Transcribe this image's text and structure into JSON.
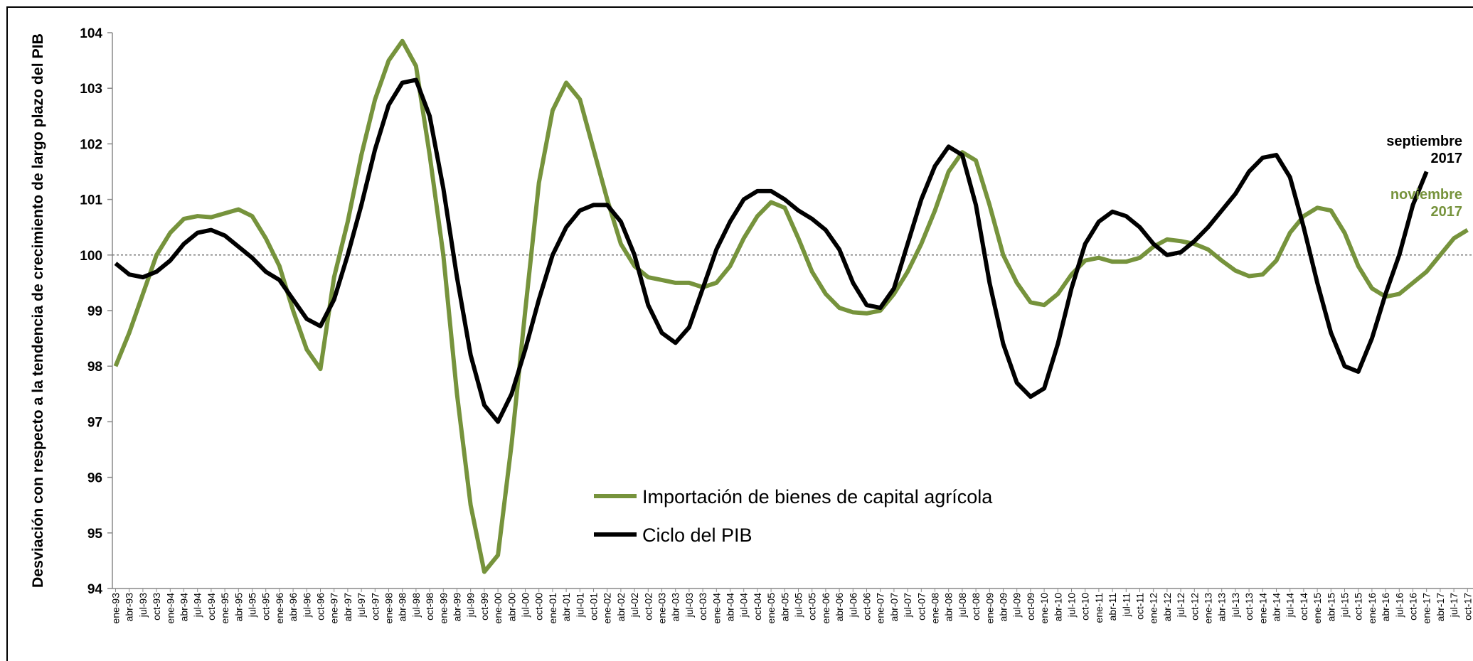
{
  "chart_data": {
    "type": "line",
    "ylabel": "Desviación con respecto a la tendencia de crecimiento de largo plazo del PIB",
    "categories": [
      "ene-93",
      "abr-93",
      "jul-93",
      "oct-93",
      "ene-94",
      "abr-94",
      "jul-94",
      "oct-94",
      "ene-95",
      "abr-95",
      "jul-95",
      "oct-95",
      "ene-96",
      "abr-96",
      "jul-96",
      "oct-96",
      "ene-97",
      "abr-97",
      "jul-97",
      "oct-97",
      "ene-98",
      "abr-98",
      "jul-98",
      "oct-98",
      "ene-99",
      "abr-99",
      "jul-99",
      "oct-99",
      "ene-00",
      "abr-00",
      "jul-00",
      "oct-00",
      "ene-01",
      "abr-01",
      "jul-01",
      "oct-01",
      "ene-02",
      "abr-02",
      "jul-02",
      "oct-02",
      "ene-03",
      "abr-03",
      "jul-03",
      "oct-03",
      "ene-04",
      "abr-04",
      "jul-04",
      "oct-04",
      "ene-05",
      "abr-05",
      "jul-05",
      "oct-05",
      "ene-06",
      "abr-06",
      "jul-06",
      "oct-06",
      "ene-07",
      "abr-07",
      "jul-07",
      "oct-07",
      "ene-08",
      "abr-08",
      "jul-08",
      "oct-08",
      "ene-09",
      "abr-09",
      "jul-09",
      "oct-09",
      "ene-10",
      "abr-10",
      "jul-10",
      "oct-10",
      "ene-11",
      "abr-11",
      "jul-11",
      "oct-11",
      "ene-12",
      "abr-12",
      "jul-12",
      "oct-12",
      "ene-13",
      "abr-13",
      "jul-13",
      "oct-13",
      "ene-14",
      "abr-14",
      "jul-14",
      "oct-14",
      "ene-15",
      "abr-15",
      "jul-15",
      "oct-15",
      "ene-16",
      "abr-16",
      "jul-16",
      "oct-16",
      "ene-17",
      "abr-17",
      "jul-17",
      "oct-17"
    ],
    "series": [
      {
        "name": "Importación de bienes de capital agrícola",
        "color": "#76933c",
        "values": [
          98.0,
          98.6,
          99.3,
          100.0,
          100.4,
          100.65,
          100.7,
          100.68,
          100.75,
          100.82,
          100.7,
          100.3,
          99.8,
          99.0,
          98.3,
          97.95,
          99.6,
          100.6,
          101.8,
          102.8,
          103.5,
          103.85,
          103.4,
          101.8,
          100.0,
          97.5,
          95.5,
          94.3,
          94.6,
          96.6,
          99.0,
          101.3,
          102.6,
          103.1,
          102.8,
          101.9,
          101.0,
          100.2,
          99.8,
          99.6,
          99.55,
          99.5,
          99.5,
          99.42,
          99.5,
          99.8,
          100.3,
          100.7,
          100.95,
          100.85,
          100.3,
          99.7,
          99.3,
          99.05,
          98.97,
          98.95,
          99.0,
          99.3,
          99.7,
          100.2,
          100.8,
          101.5,
          101.85,
          101.7,
          100.9,
          100.0,
          99.5,
          99.15,
          99.1,
          99.3,
          99.65,
          99.9,
          99.95,
          99.88,
          99.88,
          99.95,
          100.15,
          100.28,
          100.25,
          100.2,
          100.1,
          99.9,
          99.72,
          99.62,
          99.65,
          99.9,
          100.4,
          100.7,
          100.85,
          100.8,
          100.4,
          99.8,
          99.4,
          99.25,
          99.3,
          99.5,
          99.7,
          100.0,
          100.3,
          100.45
        ]
      },
      {
        "name": "Ciclo del PIB",
        "color": "#000000",
        "values": [
          99.85,
          99.65,
          99.6,
          99.7,
          99.9,
          100.2,
          100.4,
          100.45,
          100.35,
          100.15,
          99.95,
          99.7,
          99.55,
          99.2,
          98.85,
          98.72,
          99.2,
          100.0,
          100.9,
          101.9,
          102.7,
          103.1,
          103.15,
          102.5,
          101.2,
          99.6,
          98.2,
          97.3,
          97.0,
          97.5,
          98.3,
          99.2,
          100.0,
          100.5,
          100.8,
          100.9,
          100.9,
          100.6,
          100.0,
          99.1,
          98.6,
          98.42,
          98.7,
          99.4,
          100.1,
          100.6,
          101.0,
          101.15,
          101.15,
          101.0,
          100.8,
          100.65,
          100.45,
          100.1,
          99.5,
          99.1,
          99.05,
          99.4,
          100.2,
          101.0,
          101.6,
          101.95,
          101.8,
          100.9,
          99.5,
          98.4,
          97.7,
          97.45,
          97.6,
          98.4,
          99.4,
          100.2,
          100.6,
          100.78,
          100.7,
          100.5,
          100.2,
          100.0,
          100.05,
          100.25,
          100.5,
          100.8,
          101.1,
          101.5,
          101.75,
          101.8,
          101.4,
          100.5,
          99.5,
          98.6,
          98.0,
          97.9,
          98.5,
          99.3,
          100.0,
          100.9,
          101.5,
          null,
          null,
          null
        ]
      }
    ],
    "annotations": [
      {
        "text": [
          "septiembre",
          "2017"
        ],
        "color": "#000000"
      },
      {
        "text": [
          "noviembre",
          "2017"
        ],
        "color": "#76933c"
      }
    ],
    "reference_line": 100,
    "ylim": [
      94,
      104
    ],
    "yticks": [
      94,
      95,
      96,
      97,
      98,
      99,
      100,
      101,
      102,
      103,
      104
    ]
  }
}
